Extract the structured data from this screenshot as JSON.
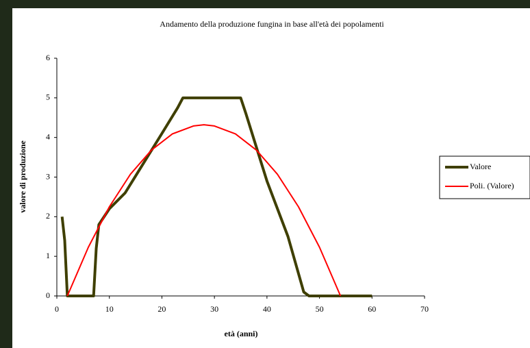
{
  "chart_data": {
    "type": "line",
    "title": "Andamento della produzione fungina in base all'età dei popolamenti",
    "x_label": "età (anni)",
    "y_label": "valore di produzione",
    "xlim": [
      0,
      70
    ],
    "xticks": [
      0,
      10,
      20,
      30,
      40,
      50,
      60,
      70
    ],
    "ylim": [
      0,
      6
    ],
    "yticks": [
      0,
      1,
      2,
      3,
      4,
      5,
      6
    ],
    "legend": "right",
    "series": [
      {
        "name": "Valore",
        "color": "#3f3f00",
        "x": [
          1,
          1.5,
          2,
          7,
          7.5,
          8,
          10,
          13,
          20,
          23,
          24,
          25,
          34,
          35,
          36,
          40,
          44,
          47,
          48,
          60
        ],
        "values": [
          2,
          1.4,
          0,
          0,
          1.2,
          1.8,
          2.2,
          2.6,
          4.1,
          4.75,
          5,
          5,
          5,
          5,
          4.6,
          2.9,
          1.5,
          0.1,
          0,
          0
        ]
      },
      {
        "name": "Poli. (Valore)",
        "color": "#ff0000",
        "x": [
          2,
          6,
          10,
          14,
          18,
          22,
          26,
          28,
          30,
          34,
          38,
          42,
          46,
          50,
          54
        ],
        "values": [
          0,
          1.23,
          2.25,
          3.07,
          3.68,
          4.09,
          4.29,
          4.32,
          4.29,
          4.09,
          3.68,
          3.07,
          2.25,
          1.23,
          0
        ]
      }
    ]
  }
}
